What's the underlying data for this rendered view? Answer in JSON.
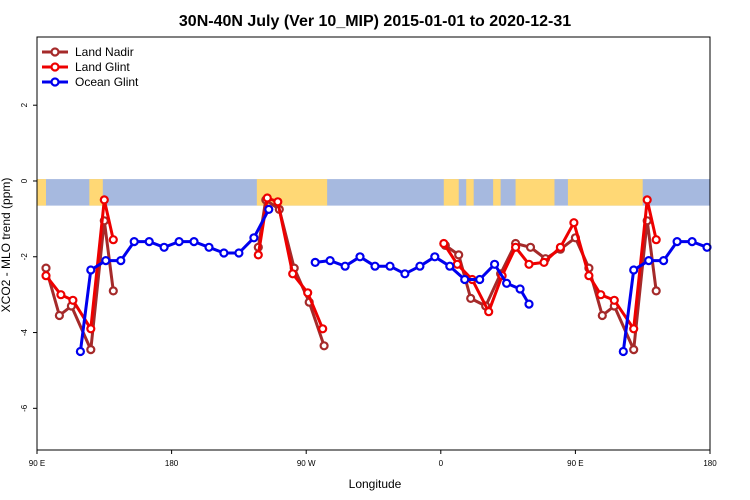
{
  "chart_data": {
    "type": "line",
    "title": "30N-40N July (Ver 10_MIP)   2015-01-01 to 2020-12-31",
    "xlabel": "Longitude",
    "ylabel": "XCO2 - MLO trend (ppm)",
    "xlim": [
      90,
      540
    ],
    "ylim": [
      -7.1,
      3.8
    ],
    "x_ticks": [
      {
        "value": 90,
        "label": "90 E"
      },
      {
        "value": 180,
        "label": "180"
      },
      {
        "value": 270,
        "label": "90 W"
      },
      {
        "value": 360,
        "label": "0"
      },
      {
        "value": 450,
        "label": "90 E"
      },
      {
        "value": 540,
        "label": "180"
      }
    ],
    "y_ticks": [
      {
        "value": 2,
        "label": "2"
      },
      {
        "value": 0,
        "label": "0"
      },
      {
        "value": -2,
        "label": "-2"
      },
      {
        "value": -4,
        "label": "-4"
      },
      {
        "value": -6,
        "label": "-6"
      }
    ],
    "legend_position": "top-left",
    "land_ocean_strip": {
      "y_range": [
        -0.65,
        0.05
      ],
      "land_color": "#ffd875",
      "ocean_color": "#a6b9df",
      "land_segments": [
        [
          90,
          96
        ],
        [
          125,
          134
        ],
        [
          237,
          284
        ],
        [
          362,
          372
        ],
        [
          377,
          382
        ],
        [
          395,
          400
        ],
        [
          410,
          436
        ],
        [
          445,
          495
        ]
      ]
    },
    "series": [
      {
        "name": "Land Nadir",
        "color": "#a52a2a",
        "segments": [
          [
            [
              96,
              -2.3
            ],
            [
              105,
              -3.55
            ],
            [
              113,
              -3.3
            ],
            [
              126,
              -4.45
            ],
            [
              135,
              -1.05
            ],
            [
              141,
              -2.9
            ]
          ],
          [
            [
              238,
              -1.75
            ],
            [
              243,
              -0.5
            ],
            [
              252,
              -0.75
            ],
            [
              262,
              -2.3
            ],
            [
              272,
              -3.2
            ],
            [
              282,
              -4.35
            ]
          ],
          [
            [
              363,
              -1.7
            ],
            [
              372,
              -1.95
            ],
            [
              380,
              -3.1
            ],
            [
              390,
              -3.3
            ],
            [
              400,
              -2.45
            ],
            [
              410,
              -1.65
            ],
            [
              420,
              -1.75
            ],
            [
              430,
              -2.05
            ],
            [
              440,
              -1.8
            ],
            [
              450,
              -1.5
            ],
            [
              459,
              -2.3
            ],
            [
              468,
              -3.55
            ],
            [
              476,
              -3.3
            ],
            [
              489,
              -4.45
            ],
            [
              498,
              -1.05
            ],
            [
              504,
              -2.9
            ]
          ]
        ]
      },
      {
        "name": "Land Glint",
        "color": "#ee0000",
        "segments": [
          [
            [
              96,
              -2.5
            ],
            [
              106,
              -3.0
            ],
            [
              114,
              -3.15
            ],
            [
              126,
              -3.9
            ],
            [
              135,
              -0.5
            ],
            [
              141,
              -1.55
            ]
          ],
          [
            [
              238,
              -1.95
            ],
            [
              244,
              -0.45
            ],
            [
              251,
              -0.55
            ],
            [
              261,
              -2.45
            ],
            [
              271,
              -2.95
            ],
            [
              281,
              -3.9
            ]
          ],
          [
            [
              362,
              -1.65
            ],
            [
              371,
              -2.2
            ],
            [
              381,
              -2.6
            ],
            [
              392,
              -3.45
            ],
            [
              401,
              -2.5
            ],
            [
              410,
              -1.75
            ],
            [
              419,
              -2.2
            ],
            [
              429,
              -2.15
            ],
            [
              440,
              -1.75
            ],
            [
              449,
              -1.1
            ],
            [
              459,
              -2.5
            ],
            [
              467,
              -3.0
            ],
            [
              476,
              -3.15
            ],
            [
              489,
              -3.9
            ],
            [
              498,
              -0.5
            ],
            [
              504,
              -1.55
            ]
          ]
        ]
      },
      {
        "name": "Ocean Glint",
        "color": "#0000ee",
        "segments": [
          [
            [
              119,
              -4.5
            ],
            [
              126,
              -2.35
            ],
            [
              136,
              -2.1
            ],
            [
              146,
              -2.1
            ],
            [
              155,
              -1.6
            ],
            [
              165,
              -1.6
            ],
            [
              175,
              -1.75
            ],
            [
              185,
              -1.6
            ],
            [
              195,
              -1.6
            ],
            [
              205,
              -1.75
            ],
            [
              215,
              -1.9
            ],
            [
              225,
              -1.9
            ],
            [
              235,
              -1.5
            ],
            [
              245,
              -0.75
            ]
          ],
          [
            [
              276,
              -2.15
            ],
            [
              286,
              -2.1
            ],
            [
              296,
              -2.25
            ],
            [
              306,
              -2.0
            ],
            [
              316,
              -2.25
            ],
            [
              326,
              -2.25
            ],
            [
              336,
              -2.45
            ],
            [
              346,
              -2.25
            ],
            [
              356,
              -2.0
            ],
            [
              366,
              -2.25
            ],
            [
              376,
              -2.6
            ],
            [
              386,
              -2.6
            ],
            [
              396,
              -2.2
            ],
            [
              404,
              -2.7
            ],
            [
              413,
              -2.85
            ],
            [
              419,
              -3.25
            ]
          ],
          [
            [
              482,
              -4.5
            ],
            [
              489,
              -2.35
            ],
            [
              499,
              -2.1
            ],
            [
              509,
              -2.1
            ],
            [
              518,
              -1.6
            ],
            [
              528,
              -1.6
            ],
            [
              538,
              -1.75
            ]
          ]
        ]
      }
    ]
  }
}
